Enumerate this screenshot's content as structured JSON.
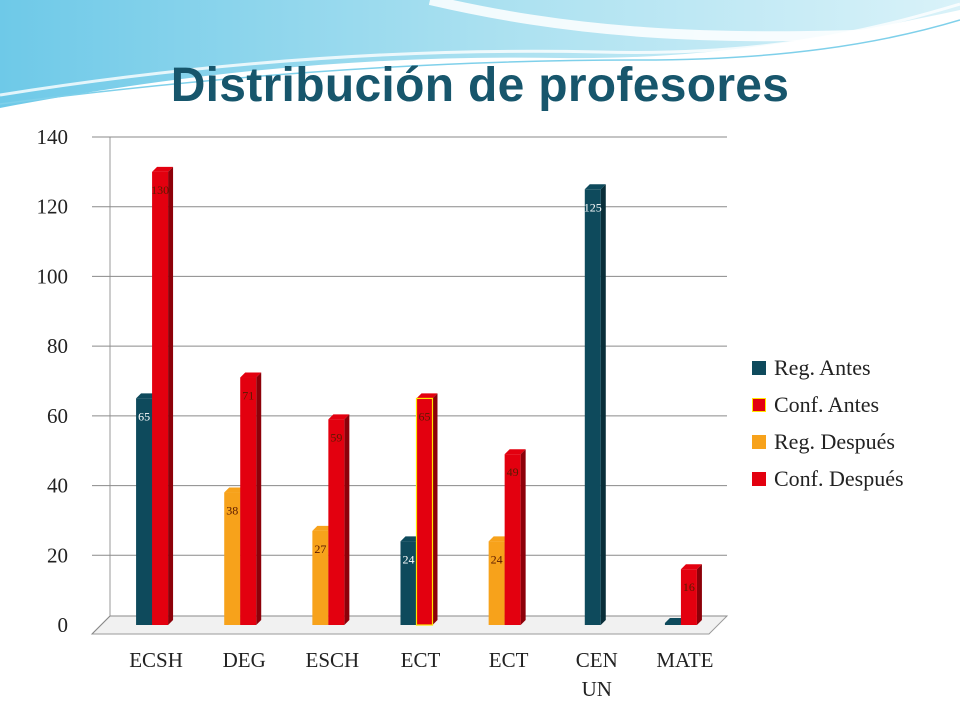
{
  "slide": {
    "title": "Distribución de profesores"
  },
  "chart_data": {
    "type": "bar",
    "categories": [
      "ECSH",
      "DEG",
      "ESCH",
      "ECT",
      "ECT",
      "CEN UN",
      "MATE"
    ],
    "series": [
      {
        "name": "Reg. Antes",
        "color": "#0e4a5c",
        "values": [
          65,
          null,
          null,
          24,
          null,
          125,
          0
        ]
      },
      {
        "name": "Conf. Antes",
        "color": "#e3000f",
        "values": [
          130,
          null,
          null,
          65,
          null,
          null,
          null
        ]
      },
      {
        "name": "Reg. Después",
        "color": "#f7a21b",
        "values": [
          null,
          38,
          27,
          null,
          24,
          null,
          null
        ]
      },
      {
        "name": "Conf. Después",
        "color": "#e3000f",
        "values": [
          null,
          71,
          59,
          null,
          49,
          null,
          16
        ]
      }
    ],
    "ylim": [
      0,
      140
    ],
    "yticks": [
      0,
      20,
      40,
      60,
      80,
      100,
      120,
      140
    ],
    "grid": true,
    "legend": "right",
    "style": "3d-columns"
  }
}
